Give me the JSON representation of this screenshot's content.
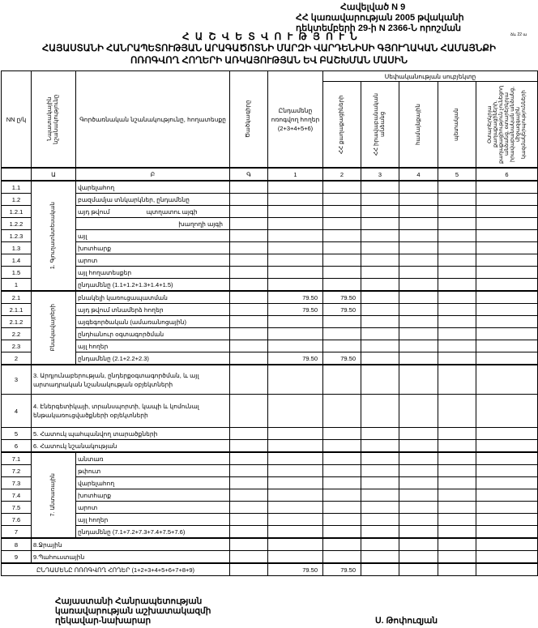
{
  "header": {
    "appendix": "Հավելված N 9",
    "decree_line1": "ՀՀ կառավարության 2005 թվականի",
    "decree_line2": "դեկտեմբերի 29-ի N 2366-Ն որոշման",
    "form_code": "ձև 22 ա",
    "title": "Հ Ա Շ Վ Ե Տ Վ Ո Ւ Թ Յ Ո Ւ Ն",
    "subtitle1": "ՀԱՅԱՍՏԱՆԻ ՀԱՆՐԱՊԵՏՈՒԹՅԱՆ ԱՐԱԳԱԾՈՏՆԻ ՄԱՐԶԻ ՎԱՐԴԵՆԻՍԻ ԳՅՈՒՂԱԿԱՆ ՀԱՄԱՅՆՔԻ",
    "subtitle2": "ՈՌՈԳՎՈՂ ՀՈՂԵՐԻ ԱՌԿԱՅՈՒԹՅԱՆ ԵՎ ԲԱՇԽՄԱՆ ՄԱՍԻՆ"
  },
  "columns": {
    "nn": "NN ը/կ",
    "purpose": "Նպատակային նշանակությունը",
    "function": "Գործառնական նշանակությունը, հողատեսքը",
    "code": "Ծածկագիրը",
    "total": "Ընդամենը ոռոգվող հողեր (2+3+4+5+6)",
    "ownership": "Սեփականության սուբյեկտը",
    "citizens": "ՀՀ քաղաքացիների",
    "legal": "ՀՀ իրավաբանական անձանց",
    "community": "համայնքային",
    "state": "պետական",
    "foreign": "Օտարերկրյա քաղաքացիների, քաղաքացիություն չունեցող անձանց, օտարերկրյա իրավաբանական անձանց, միջազգային կազմակերպությունների",
    "index": [
      "",
      "Ա",
      "Բ",
      "Գ",
      "1",
      "2",
      "3",
      "4",
      "5",
      "6"
    ]
  },
  "sections": [
    {
      "group": "1. Գյուղատնտեսական",
      "rows": [
        {
          "nn": "1.1",
          "name": "վարելահող",
          "values": [
            "",
            "",
            "",
            "",
            "",
            ""
          ]
        },
        {
          "nn": "1.2",
          "name": "բազմամյա տնկարկներ, ընդամենը",
          "values": [
            "",
            "",
            "",
            "",
            "",
            ""
          ]
        },
        {
          "nn": "1.2.1",
          "name": "այդ թվում",
          "subname": "պտղատու այգի",
          "values": [
            "",
            "",
            "",
            "",
            "",
            ""
          ]
        },
        {
          "nn": "1.2.2",
          "name": "",
          "subname": "խաղողի այգի",
          "values": [
            "",
            "",
            "",
            "",
            "",
            ""
          ]
        },
        {
          "nn": "1.2.3",
          "name": "այլ",
          "values": [
            "",
            "",
            "",
            "",
            "",
            ""
          ]
        },
        {
          "nn": "1.3",
          "name": "խոտհարք",
          "values": [
            "",
            "",
            "",
            "",
            "",
            ""
          ]
        },
        {
          "nn": "1.4",
          "name": "արոտ",
          "values": [
            "",
            "",
            "",
            "",
            "",
            ""
          ]
        },
        {
          "nn": "1.5",
          "name": "այլ հողատեսքեր",
          "values": [
            "",
            "",
            "",
            "",
            "",
            ""
          ]
        },
        {
          "nn": "1",
          "name": "ընդամենը (1.1+1.2+1.3+1.4+1.5)",
          "values": [
            "",
            "",
            "",
            "",
            "",
            ""
          ]
        }
      ]
    },
    {
      "group": "Բնակավայրերի",
      "rows": [
        {
          "nn": "2.1",
          "name": "բնակելի կառուցապատման",
          "values": [
            "79.50",
            "79.50",
            "",
            "",
            "",
            ""
          ]
        },
        {
          "nn": "2.1.1",
          "name": "այդ թվում տնամերձ հողեր",
          "values": [
            "79.50",
            "79.50",
            "",
            "",
            "",
            ""
          ]
        },
        {
          "nn": "2.1.2",
          "name": "այգեգործական (ամառանոցային)",
          "values": [
            "",
            "",
            "",
            "",
            "",
            ""
          ]
        },
        {
          "nn": "2.2",
          "name": "ընդհանուր օգտագործման",
          "values": [
            "",
            "",
            "",
            "",
            "",
            ""
          ]
        },
        {
          "nn": "2.3",
          "name": "այլ հողեր",
          "values": [
            "",
            "",
            "",
            "",
            "",
            ""
          ]
        },
        {
          "nn": "2",
          "name": "ընդամենը (2.1+2.2+2.3)",
          "values": [
            "79.50",
            "79.50",
            "",
            "",
            "",
            ""
          ]
        }
      ]
    },
    {
      "rows": [
        {
          "nn": "3",
          "name": "3. Արդյունաբերության, ընդերքօգտագործման, և այլ արտադրական նշանակության օբյեկտների",
          "tall": true,
          "values": [
            "",
            "",
            "",
            "",
            "",
            ""
          ]
        },
        {
          "nn": "4",
          "name": "4. Էներգետիկայի, տրանսպորտի, կապի և կոմունալ ենթակառուցվածքների օբյեկտների",
          "tall": true,
          "values": [
            "",
            "",
            "",
            "",
            "",
            ""
          ]
        },
        {
          "nn": "5",
          "name": "5. Հատուկ պահպանվող տարածքների",
          "values": [
            "",
            "",
            "",
            "",
            "",
            ""
          ]
        },
        {
          "nn": "6",
          "name": "6. Հատուկ նշանակության",
          "values": [
            "",
            "",
            "",
            "",
            "",
            ""
          ]
        }
      ]
    },
    {
      "group": "7. Անտառային",
      "rows": [
        {
          "nn": "7.1",
          "name": "անտառ",
          "values": [
            "",
            "",
            "",
            "",
            "",
            ""
          ]
        },
        {
          "nn": "7.2",
          "name": "թփուտ",
          "values": [
            "",
            "",
            "",
            "",
            "",
            ""
          ]
        },
        {
          "nn": "7.3",
          "name": "վարելահող",
          "values": [
            "",
            "",
            "",
            "",
            "",
            ""
          ]
        },
        {
          "nn": "7.4",
          "name": "խոտհարք",
          "values": [
            "",
            "",
            "",
            "",
            "",
            ""
          ]
        },
        {
          "nn": "7.5",
          "name": "արոտ",
          "values": [
            "",
            "",
            "",
            "",
            "",
            ""
          ]
        },
        {
          "nn": "7.6",
          "name": "այլ հողեր",
          "values": [
            "",
            "",
            "",
            "",
            "",
            ""
          ]
        },
        {
          "nn": "7",
          "name": "ընդամենը (7.1+7.2+7.3+7.4+7.5+7.6)",
          "values": [
            "",
            "",
            "",
            "",
            "",
            ""
          ]
        }
      ]
    },
    {
      "rows": [
        {
          "nn": "8",
          "name": "8.Ջրային",
          "values": [
            "",
            "",
            "",
            "",
            "",
            ""
          ]
        },
        {
          "nn": "9",
          "name": "9.Պահուստային",
          "values": [
            "",
            "",
            "",
            "",
            "",
            ""
          ]
        }
      ]
    }
  ],
  "total": {
    "name": "ԸՆԴԱՄԵՆԸ ՈՌՈԳՎՈՂ ՀՈՂԵՐ (1+2+3+4+5+6+7+8+9)",
    "values": [
      "79.50",
      "79.50",
      "",
      "",
      "",
      ""
    ]
  },
  "footer": {
    "position1": "Հայաստանի Հանրապետության",
    "position2": "կառավարության աշխատակազմի",
    "position3": "ղեկավար-նախարար",
    "signatory": "Ս. Թոփուզյան"
  }
}
